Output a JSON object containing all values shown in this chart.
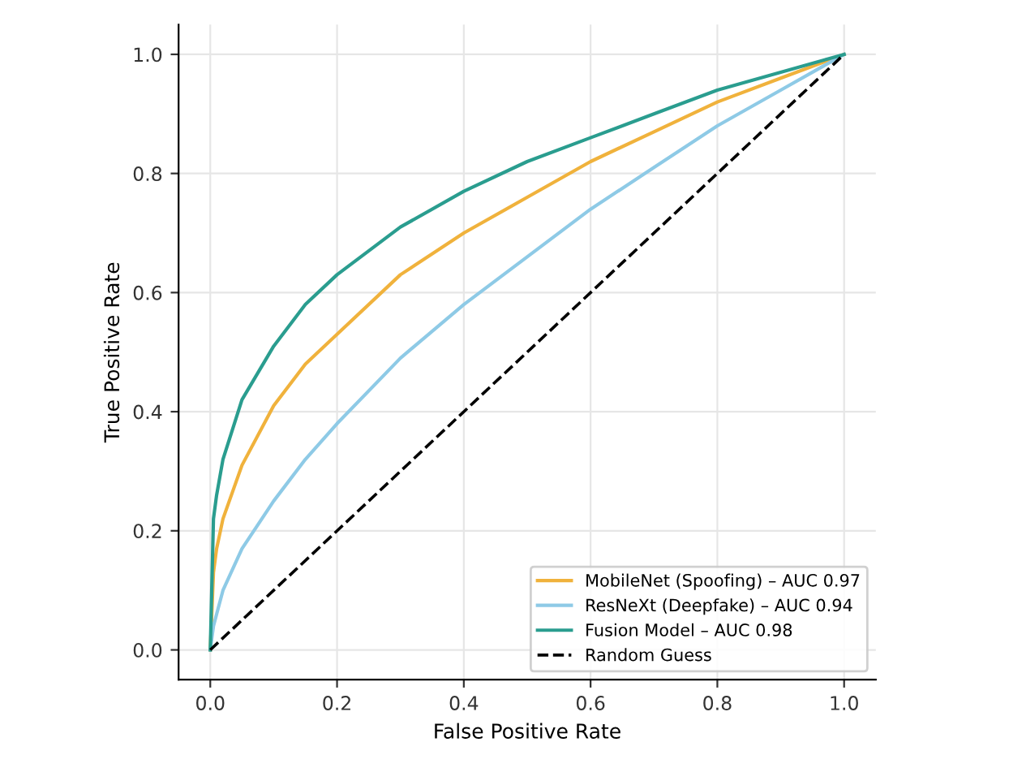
{
  "chart_data": {
    "type": "line",
    "xlabel": "False Positive Rate",
    "ylabel": "True Positive Rate",
    "xlim": [
      -0.05,
      1.05
    ],
    "ylim": [
      -0.05,
      1.05
    ],
    "xticks": [
      {
        "value": 0,
        "label": "0.0"
      },
      0.2,
      0.4,
      0.6,
      0.8,
      {
        "value": 1,
        "label": "1.0"
      }
    ],
    "yticks": [
      {
        "value": 0,
        "label": "0.0"
      },
      0.2,
      0.4,
      0.6,
      0.8,
      {
        "value": 1,
        "label": "1.0"
      }
    ],
    "grid": true,
    "legend": "bottom right",
    "marker": "none",
    "line_style": "solid",
    "series": [
      {
        "name": "MobileNet (Spoofing) – AUC 0.97",
        "color": "#f0b23c",
        "x": [
          0,
          0.005,
          0.01,
          0.02,
          0.05,
          0.1,
          0.15,
          0.2,
          0.3,
          0.4,
          0.5,
          0.6,
          0.7,
          0.8,
          0.9,
          1.0
        ],
        "values": [
          0,
          0.13,
          0.17,
          0.22,
          0.31,
          0.41,
          0.48,
          0.53,
          0.63,
          0.7,
          0.76,
          0.82,
          0.87,
          0.92,
          0.96,
          1.0
        ]
      },
      {
        "name": "ResNeXt (Deepfake) – AUC 0.94",
        "color": "#8ecae6",
        "x": [
          0,
          0.005,
          0.01,
          0.02,
          0.05,
          0.1,
          0.15,
          0.2,
          0.3,
          0.4,
          0.5,
          0.6,
          0.7,
          0.8,
          0.9,
          1.0
        ],
        "values": [
          0,
          0.04,
          0.06,
          0.1,
          0.17,
          0.25,
          0.32,
          0.38,
          0.49,
          0.58,
          0.66,
          0.74,
          0.81,
          0.88,
          0.94,
          1.0
        ]
      },
      {
        "name": "Fusion Model – AUC 0.98",
        "color": "#2a9d8f",
        "x": [
          0,
          0.005,
          0.01,
          0.02,
          0.05,
          0.1,
          0.15,
          0.2,
          0.3,
          0.4,
          0.5,
          0.6,
          0.7,
          0.8,
          0.9,
          1.0
        ],
        "values": [
          0,
          0.22,
          0.26,
          0.32,
          0.42,
          0.51,
          0.58,
          0.63,
          0.71,
          0.77,
          0.82,
          0.86,
          0.9,
          0.94,
          0.97,
          1.0
        ]
      },
      {
        "name": "Random Guess",
        "color": "#000000",
        "line_style": "dashed",
        "x": [
          0,
          1
        ],
        "values": [
          0,
          1
        ]
      }
    ]
  }
}
